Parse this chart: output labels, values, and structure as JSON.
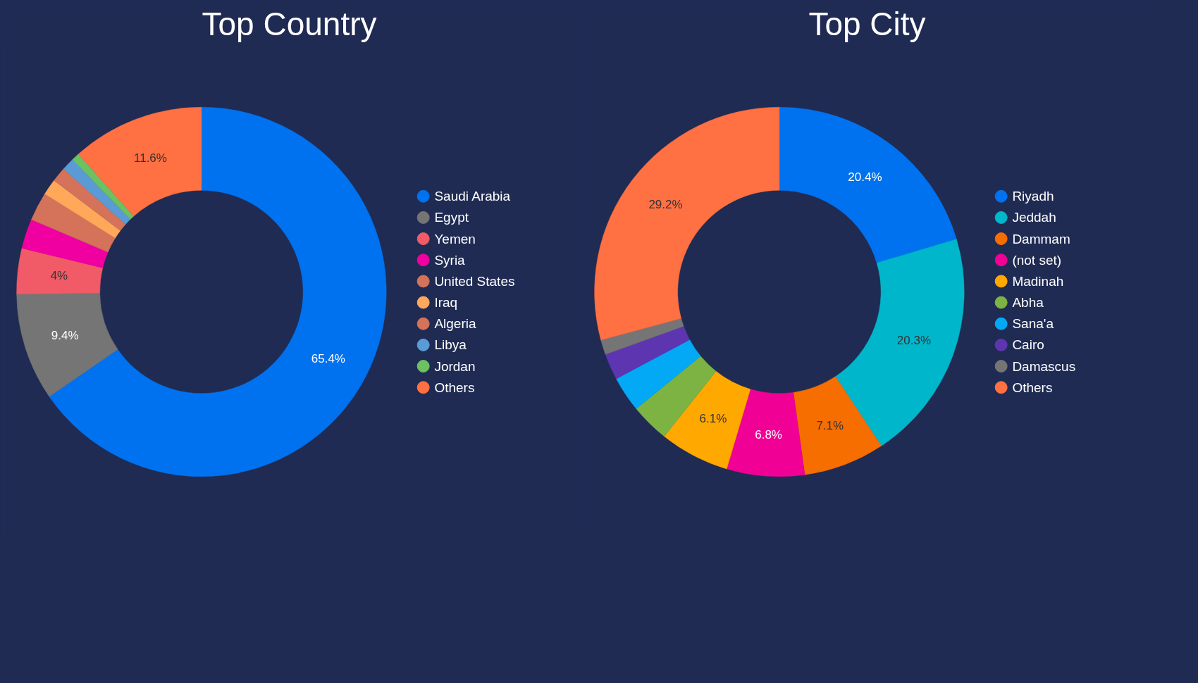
{
  "chart_data": [
    {
      "type": "donut",
      "title": "Top Country",
      "legend": "right",
      "categories": [
        "Saudi Arabia",
        "Egypt",
        "Yemen",
        "Syria",
        "United States",
        "Iraq",
        "Algeria",
        "Libya",
        "Jordan",
        "Others"
      ],
      "values": [
        65.4,
        9.4,
        4,
        2.6,
        2.5,
        1.4,
        1.3,
        1.1,
        0.7,
        11.6
      ],
      "value_labels": [
        "65.4%",
        "9.4%",
        "4%",
        null,
        null,
        null,
        null,
        null,
        null,
        "11.6%"
      ],
      "colors": [
        "#0072f0",
        "#757575",
        "#f05b67",
        "#f000a0",
        "#d4725a",
        "#ffa85a",
        "#d4725a",
        "#5b9bd5",
        "#6cc160",
        "#ff7043"
      ]
    },
    {
      "type": "donut",
      "title": "Top City",
      "legend": "right",
      "categories": [
        "Riyadh",
        "Jeddah",
        "Dammam",
        "(not set)",
        "Madinah",
        "Abha",
        "Sana'a",
        "Cairo",
        "Damascus",
        "Others"
      ],
      "values": [
        20.4,
        20.3,
        7.1,
        6.8,
        6.1,
        3.4,
        3.1,
        2.3,
        1.3,
        29.2
      ],
      "value_labels": [
        "20.4%",
        "20.3%",
        "7.1%",
        "6.8%",
        "6.1%",
        null,
        null,
        null,
        null,
        "29.2%"
      ],
      "colors": [
        "#0072f0",
        "#00b6cb",
        "#f66d00",
        "#f10096",
        "#ffa800",
        "#7cb342",
        "#03a9f4",
        "#5e35b1",
        "#757575",
        "#ff7043"
      ]
    }
  ]
}
